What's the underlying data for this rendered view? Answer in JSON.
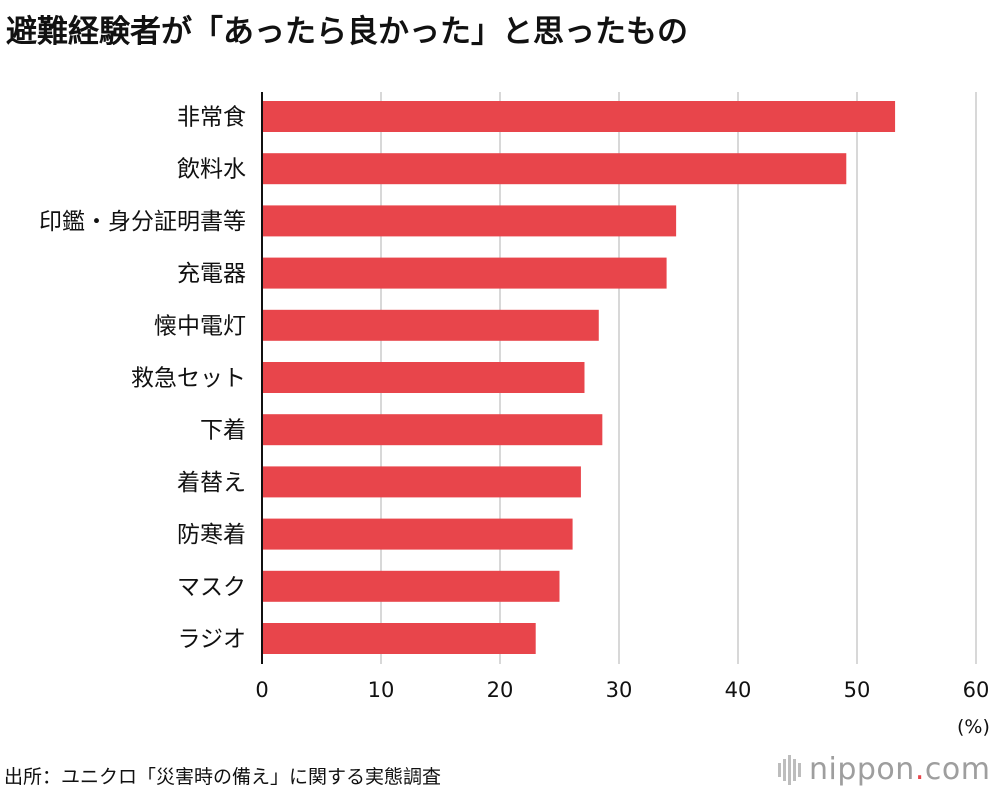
{
  "title": "避難経験者が「あったら良かった」と思ったもの",
  "unit_label": "(%)",
  "source": "出所：ユニクロ「災害時の備え」に関する実態調査",
  "brand": {
    "name": "nippon",
    "dot": ".",
    "tld": "com"
  },
  "colors": {
    "bar": "#e8454b",
    "grid": "#cccccc",
    "axis": "#111111"
  },
  "chart_data": {
    "type": "bar",
    "orientation": "horizontal",
    "title": "避難経験者が「あったら良かった」と思ったもの",
    "categories": [
      "非常食",
      "飲料水",
      "印鑑・身分証明書等",
      "充電器",
      "懐中電灯",
      "救急セット",
      "下着",
      "着替え",
      "防寒着",
      "マスク",
      "ラジオ"
    ],
    "values": [
      53.2,
      49.1,
      34.8,
      34.0,
      28.3,
      27.1,
      28.6,
      26.8,
      26.1,
      25.0,
      23.0
    ],
    "xlim": [
      0,
      60
    ],
    "xticks": [
      0,
      10,
      20,
      30,
      40,
      50,
      60
    ],
    "xlabel": "(%)",
    "ylabel": "",
    "grid": true,
    "legend": "none"
  }
}
